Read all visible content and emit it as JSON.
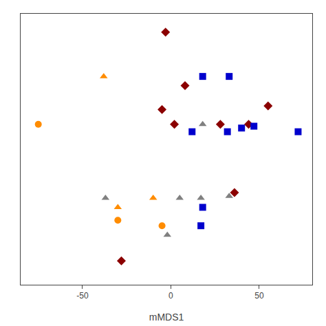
{
  "chart_data": {
    "type": "scatter",
    "xlabel": "mMDS1",
    "xlim": [
      -85,
      80
    ],
    "ylim": [
      -75,
      72
    ],
    "xticks": [
      -50,
      0,
      50
    ],
    "tick_labels": "x",
    "grid": false,
    "series": [
      {
        "color": "#8B0000",
        "marker": "diamond",
        "x": [
          -3,
          -5,
          8,
          55,
          2,
          28,
          44,
          36,
          -28
        ],
        "values": [
          62,
          20,
          33,
          22,
          12,
          12,
          12,
          -25,
          -62
        ]
      },
      {
        "color": "#FF8C00",
        "marker": "triangle-up",
        "x": [
          -38,
          -30,
          -10
        ],
        "values": [
          38,
          -33,
          -28
        ]
      },
      {
        "color": "#FF8C00",
        "marker": "circle",
        "x": [
          -75,
          -30,
          -5
        ],
        "values": [
          12,
          -40,
          -43
        ]
      },
      {
        "color": "#0000CD",
        "marker": "square",
        "x": [
          18,
          33,
          12,
          40,
          47,
          72,
          32,
          18,
          17
        ],
        "values": [
          38,
          38,
          8,
          10,
          11,
          8,
          8,
          -33,
          -43
        ]
      },
      {
        "color": "#808080",
        "marker": "triangle-up",
        "x": [
          18,
          -37,
          5,
          17,
          33,
          -2
        ],
        "values": [
          12,
          -28,
          -28,
          -28,
          -27,
          -48
        ]
      }
    ]
  }
}
